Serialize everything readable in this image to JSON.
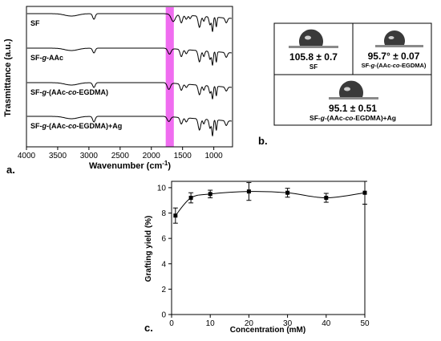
{
  "figure": {
    "panel_labels": {
      "a": "a.",
      "b": "b.",
      "c": "c."
    }
  },
  "chart_data": [
    {
      "type": "line",
      "panel": "a",
      "xlabel": "Wavenumber (cm",
      "xlabel_sup": "-1",
      "xlabel_tail": ")",
      "ylabel": "Trasmittance (a.u.)",
      "xlim": [
        4000,
        700
      ],
      "x_ticks": [
        4000,
        3500,
        3000,
        2500,
        2000,
        1500,
        1000
      ],
      "highlight_band": {
        "from": 1770,
        "to": 1640,
        "color": "#f06cf0"
      },
      "series": [
        {
          "name": "SF",
          "name_parts": [
            "SF"
          ]
        },
        {
          "name": "SF-g-AAc",
          "name_parts": [
            "SF-",
            "g",
            "-AAc"
          ]
        },
        {
          "name": "SF-g-(AAc-co-EGDMA)",
          "name_parts": [
            "SF-",
            "g",
            "-(AAc-",
            "co",
            "-EGDMA)"
          ]
        },
        {
          "name": "SF-g-(AAc-co-EGDMA)+Ag",
          "name_parts": [
            "SF-",
            "g",
            "-(AAc-",
            "co",
            "-EGDMA)+Ag"
          ]
        }
      ]
    },
    {
      "type": "table",
      "panel": "b",
      "cells": [
        {
          "value": "105.8 ± 0.7",
          "label_parts": [
            "SF"
          ]
        },
        {
          "value": "95.7° ± 0.07",
          "label_parts": [
            "SF-",
            "g",
            "-(AAc-",
            "co",
            "-EGDMA)"
          ]
        },
        {
          "value": "95.1 ± 0.51",
          "label_parts": [
            "SF-",
            "g",
            "-(AAc-",
            "co",
            "-EGDMA)+Ag"
          ]
        }
      ]
    },
    {
      "type": "scatter",
      "panel": "c",
      "xlabel": "Concentration (mM)",
      "ylabel": "Grafting yield (%)",
      "xlim": [
        0,
        50
      ],
      "ylim": [
        0,
        10.5
      ],
      "x_ticks": [
        0,
        10,
        20,
        30,
        40,
        50
      ],
      "y_ticks": [
        0,
        2,
        4,
        6,
        8,
        10
      ],
      "x": [
        1,
        5,
        10,
        20,
        30,
        40,
        50
      ],
      "y": [
        7.8,
        9.2,
        9.5,
        9.7,
        9.6,
        9.2,
        9.6
      ],
      "error": [
        0.6,
        0.4,
        0.3,
        0.7,
        0.35,
        0.35,
        0.9
      ],
      "fit_line": true
    }
  ]
}
